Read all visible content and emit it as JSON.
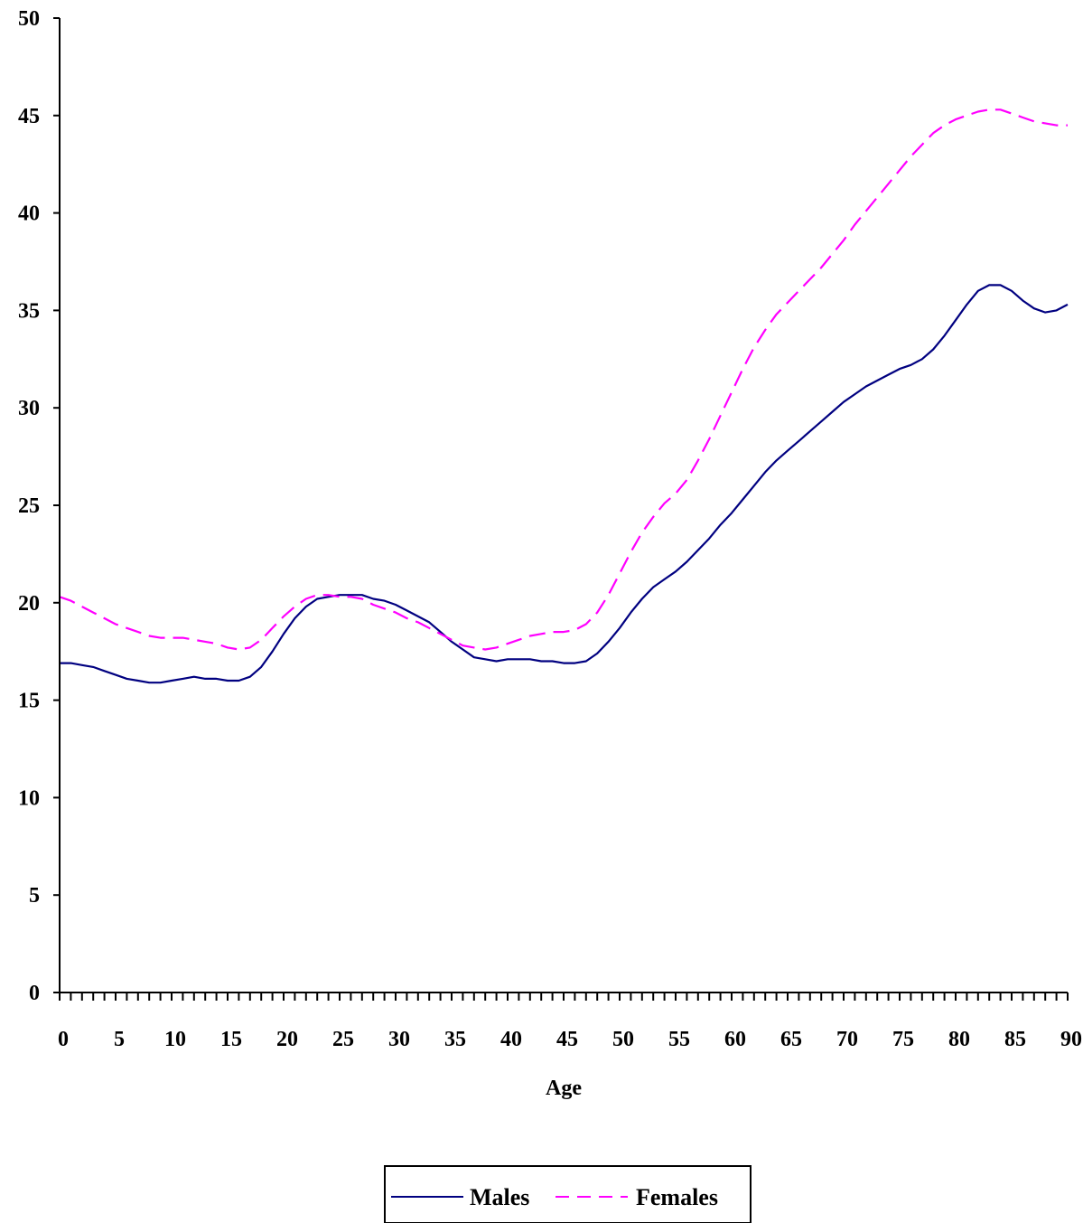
{
  "chart_data": {
    "type": "line",
    "title": "",
    "xlabel": "Age",
    "ylabel": "",
    "xlim": [
      0,
      90
    ],
    "ylim": [
      0,
      50
    ],
    "x_ticks": [
      "0",
      "5",
      "10",
      "15",
      "20",
      "25",
      "30",
      "35",
      "40",
      "45",
      "50",
      "55",
      "60",
      "65",
      "70",
      "75",
      "80",
      "85",
      "90"
    ],
    "y_ticks": [
      "0",
      "5",
      "10",
      "15",
      "20",
      "25",
      "30",
      "35",
      "40",
      "45",
      "50"
    ],
    "grid": false,
    "legend_position": "bottom-center",
    "series": [
      {
        "name": "Males",
        "color": "#000080",
        "dash": "solid",
        "points": [
          [
            0,
            16.9
          ],
          [
            1,
            16.9
          ],
          [
            2,
            16.8
          ],
          [
            3,
            16.7
          ],
          [
            4,
            16.5
          ],
          [
            5,
            16.3
          ],
          [
            6,
            16.1
          ],
          [
            7,
            16.0
          ],
          [
            8,
            15.9
          ],
          [
            9,
            15.9
          ],
          [
            10,
            16.0
          ],
          [
            11,
            16.1
          ],
          [
            12,
            16.2
          ],
          [
            13,
            16.1
          ],
          [
            14,
            16.1
          ],
          [
            15,
            16.0
          ],
          [
            16,
            16.0
          ],
          [
            17,
            16.2
          ],
          [
            18,
            16.7
          ],
          [
            19,
            17.5
          ],
          [
            20,
            18.4
          ],
          [
            21,
            19.2
          ],
          [
            22,
            19.8
          ],
          [
            23,
            20.2
          ],
          [
            24,
            20.3
          ],
          [
            25,
            20.4
          ],
          [
            26,
            20.4
          ],
          [
            27,
            20.4
          ],
          [
            28,
            20.2
          ],
          [
            29,
            20.1
          ],
          [
            30,
            19.9
          ],
          [
            31,
            19.6
          ],
          [
            32,
            19.3
          ],
          [
            33,
            19.0
          ],
          [
            34,
            18.5
          ],
          [
            35,
            18.0
          ],
          [
            36,
            17.6
          ],
          [
            37,
            17.2
          ],
          [
            38,
            17.1
          ],
          [
            39,
            17.0
          ],
          [
            40,
            17.1
          ],
          [
            41,
            17.1
          ],
          [
            42,
            17.1
          ],
          [
            43,
            17.0
          ],
          [
            44,
            17.0
          ],
          [
            45,
            16.9
          ],
          [
            46,
            16.9
          ],
          [
            47,
            17.0
          ],
          [
            48,
            17.4
          ],
          [
            49,
            18.0
          ],
          [
            50,
            18.7
          ],
          [
            51,
            19.5
          ],
          [
            52,
            20.2
          ],
          [
            53,
            20.8
          ],
          [
            54,
            21.2
          ],
          [
            55,
            21.6
          ],
          [
            56,
            22.1
          ],
          [
            57,
            22.7
          ],
          [
            58,
            23.3
          ],
          [
            59,
            24.0
          ],
          [
            60,
            24.6
          ],
          [
            61,
            25.3
          ],
          [
            62,
            26.0
          ],
          [
            63,
            26.7
          ],
          [
            64,
            27.3
          ],
          [
            65,
            27.8
          ],
          [
            66,
            28.3
          ],
          [
            67,
            28.8
          ],
          [
            68,
            29.3
          ],
          [
            69,
            29.8
          ],
          [
            70,
            30.3
          ],
          [
            71,
            30.7
          ],
          [
            72,
            31.1
          ],
          [
            73,
            31.4
          ],
          [
            74,
            31.7
          ],
          [
            75,
            32.0
          ],
          [
            76,
            32.2
          ],
          [
            77,
            32.5
          ],
          [
            78,
            33.0
          ],
          [
            79,
            33.7
          ],
          [
            80,
            34.5
          ],
          [
            81,
            35.3
          ],
          [
            82,
            36.0
          ],
          [
            83,
            36.3
          ],
          [
            84,
            36.3
          ],
          [
            85,
            36.0
          ],
          [
            86,
            35.5
          ],
          [
            87,
            35.1
          ],
          [
            88,
            34.9
          ],
          [
            89,
            35.0
          ],
          [
            90,
            35.3
          ]
        ]
      },
      {
        "name": "Females",
        "color": "#FF00FF",
        "dash": "dashed",
        "points": [
          [
            0,
            20.3
          ],
          [
            1,
            20.1
          ],
          [
            2,
            19.8
          ],
          [
            3,
            19.5
          ],
          [
            4,
            19.2
          ],
          [
            5,
            18.9
          ],
          [
            6,
            18.7
          ],
          [
            7,
            18.5
          ],
          [
            8,
            18.3
          ],
          [
            9,
            18.2
          ],
          [
            10,
            18.2
          ],
          [
            11,
            18.2
          ],
          [
            12,
            18.1
          ],
          [
            13,
            18.0
          ],
          [
            14,
            17.9
          ],
          [
            15,
            17.7
          ],
          [
            16,
            17.6
          ],
          [
            17,
            17.7
          ],
          [
            18,
            18.1
          ],
          [
            19,
            18.7
          ],
          [
            20,
            19.3
          ],
          [
            21,
            19.8
          ],
          [
            22,
            20.2
          ],
          [
            23,
            20.4
          ],
          [
            24,
            20.4
          ],
          [
            25,
            20.3
          ],
          [
            26,
            20.3
          ],
          [
            27,
            20.2
          ],
          [
            28,
            19.9
          ],
          [
            29,
            19.7
          ],
          [
            30,
            19.5
          ],
          [
            31,
            19.2
          ],
          [
            32,
            19.0
          ],
          [
            33,
            18.7
          ],
          [
            34,
            18.4
          ],
          [
            35,
            18.1
          ],
          [
            36,
            17.8
          ],
          [
            37,
            17.7
          ],
          [
            38,
            17.6
          ],
          [
            39,
            17.7
          ],
          [
            40,
            17.9
          ],
          [
            41,
            18.1
          ],
          [
            42,
            18.3
          ],
          [
            43,
            18.4
          ],
          [
            44,
            18.5
          ],
          [
            45,
            18.5
          ],
          [
            46,
            18.6
          ],
          [
            47,
            18.9
          ],
          [
            48,
            19.5
          ],
          [
            49,
            20.4
          ],
          [
            50,
            21.5
          ],
          [
            51,
            22.6
          ],
          [
            52,
            23.6
          ],
          [
            53,
            24.4
          ],
          [
            54,
            25.1
          ],
          [
            55,
            25.6
          ],
          [
            56,
            26.3
          ],
          [
            57,
            27.3
          ],
          [
            58,
            28.4
          ],
          [
            59,
            29.6
          ],
          [
            60,
            30.8
          ],
          [
            61,
            32.0
          ],
          [
            62,
            33.1
          ],
          [
            63,
            34.0
          ],
          [
            64,
            34.8
          ],
          [
            65,
            35.4
          ],
          [
            66,
            36.0
          ],
          [
            67,
            36.6
          ],
          [
            68,
            37.2
          ],
          [
            69,
            37.9
          ],
          [
            70,
            38.6
          ],
          [
            71,
            39.4
          ],
          [
            72,
            40.1
          ],
          [
            73,
            40.8
          ],
          [
            74,
            41.5
          ],
          [
            75,
            42.2
          ],
          [
            76,
            42.9
          ],
          [
            77,
            43.5
          ],
          [
            78,
            44.1
          ],
          [
            79,
            44.5
          ],
          [
            80,
            44.8
          ],
          [
            81,
            45.0
          ],
          [
            82,
            45.2
          ],
          [
            83,
            45.3
          ],
          [
            84,
            45.3
          ],
          [
            85,
            45.1
          ],
          [
            86,
            44.9
          ],
          [
            87,
            44.7
          ],
          [
            88,
            44.6
          ],
          [
            89,
            44.5
          ],
          [
            90,
            44.5
          ]
        ]
      }
    ]
  }
}
